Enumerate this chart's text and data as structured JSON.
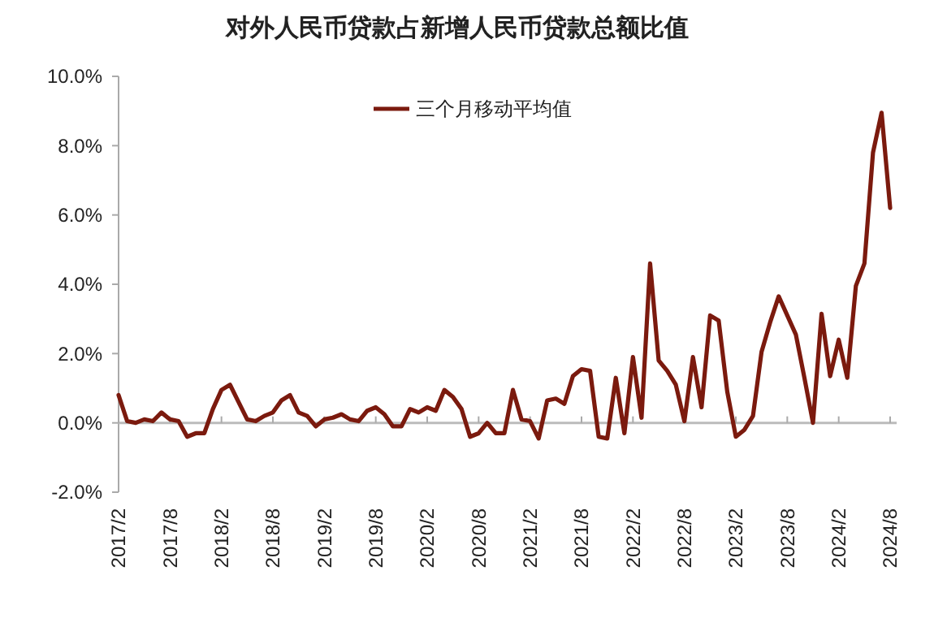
{
  "chart_data": {
    "type": "line",
    "title": "对外人民币贷款占新增人民币贷款总额比值",
    "categories": [
      "2017/2",
      null,
      null,
      null,
      null,
      null,
      "2017/8",
      null,
      null,
      null,
      null,
      null,
      "2018/2",
      null,
      null,
      null,
      null,
      null,
      "2018/8",
      null,
      null,
      null,
      null,
      null,
      "2019/2",
      null,
      null,
      null,
      null,
      null,
      "2019/8",
      null,
      null,
      null,
      null,
      null,
      "2020/2",
      null,
      null,
      null,
      null,
      null,
      "2020/8",
      null,
      null,
      null,
      null,
      null,
      "2021/2",
      null,
      null,
      null,
      null,
      null,
      "2021/8",
      null,
      null,
      null,
      null,
      null,
      "2022/2",
      null,
      null,
      null,
      null,
      null,
      "2022/8",
      null,
      null,
      null,
      null,
      null,
      "2023/2",
      null,
      null,
      null,
      null,
      null,
      "2023/8",
      null,
      null,
      null,
      null,
      null,
      "2024/2",
      null,
      null,
      null,
      null,
      null,
      "2024/8"
    ],
    "series": [
      {
        "name": "三个月移动平均值",
        "color": "#7b1a0e",
        "values": [
          0.8,
          0.05,
          0.0,
          0.1,
          0.05,
          0.3,
          0.1,
          0.05,
          -0.4,
          -0.3,
          -0.3,
          0.4,
          0.95,
          1.1,
          0.6,
          0.1,
          0.05,
          0.2,
          0.3,
          0.65,
          0.8,
          0.3,
          0.2,
          -0.1,
          0.1,
          0.15,
          0.25,
          0.1,
          0.05,
          0.35,
          0.45,
          0.25,
          -0.1,
          -0.1,
          0.4,
          0.3,
          0.45,
          0.35,
          0.95,
          0.75,
          0.4,
          -0.4,
          -0.3,
          0.0,
          -0.3,
          -0.3,
          0.95,
          0.1,
          0.05,
          -0.45,
          0.65,
          0.7,
          0.55,
          1.35,
          1.55,
          1.5,
          -0.4,
          -0.45,
          1.3,
          -0.3,
          1.9,
          0.15,
          4.6,
          1.8,
          1.5,
          1.1,
          0.05,
          1.9,
          0.45,
          3.1,
          2.95,
          0.9,
          -0.4,
          -0.2,
          0.2,
          2.05,
          2.9,
          3.65,
          3.1,
          2.55,
          1.3,
          0.0,
          3.15,
          1.35,
          2.4,
          1.3,
          3.95,
          4.6,
          7.8,
          8.95,
          6.2
        ]
      }
    ],
    "ylim": [
      -2,
      10
    ],
    "yticks": [
      {
        "value": -2,
        "label": "-2.0%"
      },
      {
        "value": 0,
        "label": "0.0%"
      },
      {
        "value": 2,
        "label": "2.0%"
      },
      {
        "value": 4,
        "label": "4.0%"
      },
      {
        "value": 6,
        "label": "6.0%"
      },
      {
        "value": 8,
        "label": "8.0%"
      },
      {
        "value": 10,
        "label": "10.0%"
      }
    ],
    "legend": "top"
  }
}
